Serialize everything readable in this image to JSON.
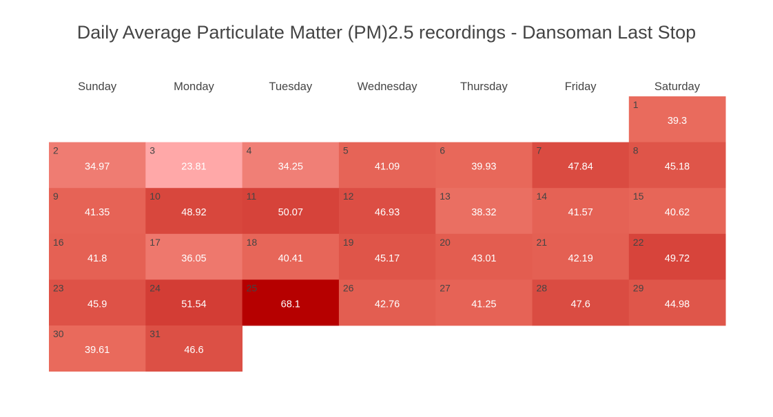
{
  "chart_data": {
    "type": "heatmap",
    "title": "Daily Average Particulate Matter (PM)2.5 recordings - Dansoman Last Stop",
    "weekdays": [
      "Sunday",
      "Monday",
      "Tuesday",
      "Wednesday",
      "Thursday",
      "Friday",
      "Saturday"
    ],
    "first_day_weekday": "Saturday",
    "days": [
      1,
      2,
      3,
      4,
      5,
      6,
      7,
      8,
      9,
      10,
      11,
      12,
      13,
      14,
      15,
      16,
      17,
      18,
      19,
      20,
      21,
      22,
      23,
      24,
      25,
      26,
      27,
      28,
      29,
      30,
      31
    ],
    "values": [
      39.3,
      34.97,
      23.81,
      34.25,
      41.09,
      39.93,
      47.84,
      45.18,
      41.35,
      48.92,
      50.07,
      46.93,
      38.32,
      41.57,
      40.62,
      41.8,
      36.05,
      40.41,
      45.17,
      43.01,
      42.19,
      49.72,
      45.9,
      51.54,
      68.1,
      42.76,
      41.25,
      47.6,
      44.98,
      39.61,
      46.6
    ],
    "color_scale": {
      "low": "#ffa8a8",
      "mid": "#e8685a",
      "high": "#b60000"
    }
  }
}
